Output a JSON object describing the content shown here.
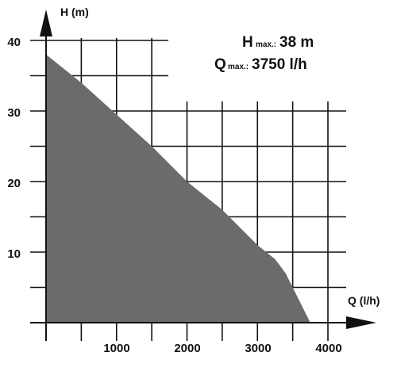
{
  "chart_data": {
    "type": "area",
    "xlabel": "Q (l/h)",
    "ylabel": "H (m)",
    "xlim": [
      0,
      4000
    ],
    "ylim": [
      0,
      40
    ],
    "x_ticks": [
      "1000",
      "2000",
      "3000",
      "4000"
    ],
    "y_ticks": [
      "10",
      "20",
      "30",
      "40"
    ],
    "grid": true,
    "fill_color": "#6b6b6b",
    "series": [
      {
        "x": [
          0,
          500,
          1000,
          1500,
          2000,
          2500,
          3000,
          3250,
          3400,
          3500,
          3600,
          3700,
          3750
        ],
        "y": [
          38,
          34,
          29.5,
          25,
          20,
          16,
          11,
          9,
          7,
          5,
          3,
          1,
          0
        ]
      }
    ],
    "annotations": {
      "hmax_prefix": "H",
      "hmax_sub": "max.:",
      "hmax_value": "38 m",
      "qmax_prefix": "Q",
      "qmax_sub": "max.:",
      "qmax_value": "3750 l/h"
    }
  }
}
